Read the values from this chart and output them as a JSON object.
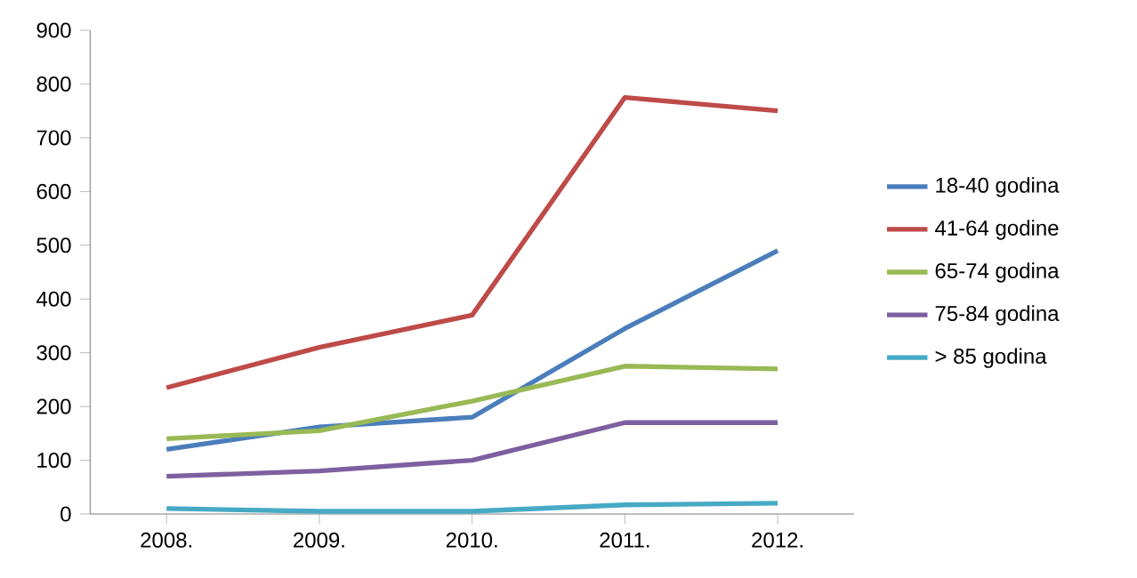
{
  "chart_data": {
    "type": "line",
    "categories": [
      "2008.",
      "2009.",
      "2010.",
      "2011.",
      "2012."
    ],
    "series": [
      {
        "name": "18-40 godina",
        "color": "#4a7ebb",
        "values": [
          120,
          162,
          180,
          345,
          490
        ]
      },
      {
        "name": "41-64 godine",
        "color": "#be4b48",
        "values": [
          235,
          310,
          370,
          775,
          750
        ]
      },
      {
        "name": "65-74 godina",
        "color": "#98b954",
        "values": [
          140,
          155,
          210,
          275,
          270
        ]
      },
      {
        "name": "75-84 godina",
        "color": "#7d60a0",
        "values": [
          70,
          80,
          100,
          170,
          170
        ]
      },
      {
        "name": "> 85 godina",
        "color": "#46aac5",
        "values": [
          10,
          5,
          5,
          17,
          20
        ]
      }
    ],
    "ylim": [
      0,
      900
    ],
    "yticks": [
      0,
      100,
      200,
      300,
      400,
      500,
      600,
      700,
      800,
      900
    ],
    "legend": "right",
    "grid": false,
    "marker": "none",
    "line_style": "solid"
  }
}
